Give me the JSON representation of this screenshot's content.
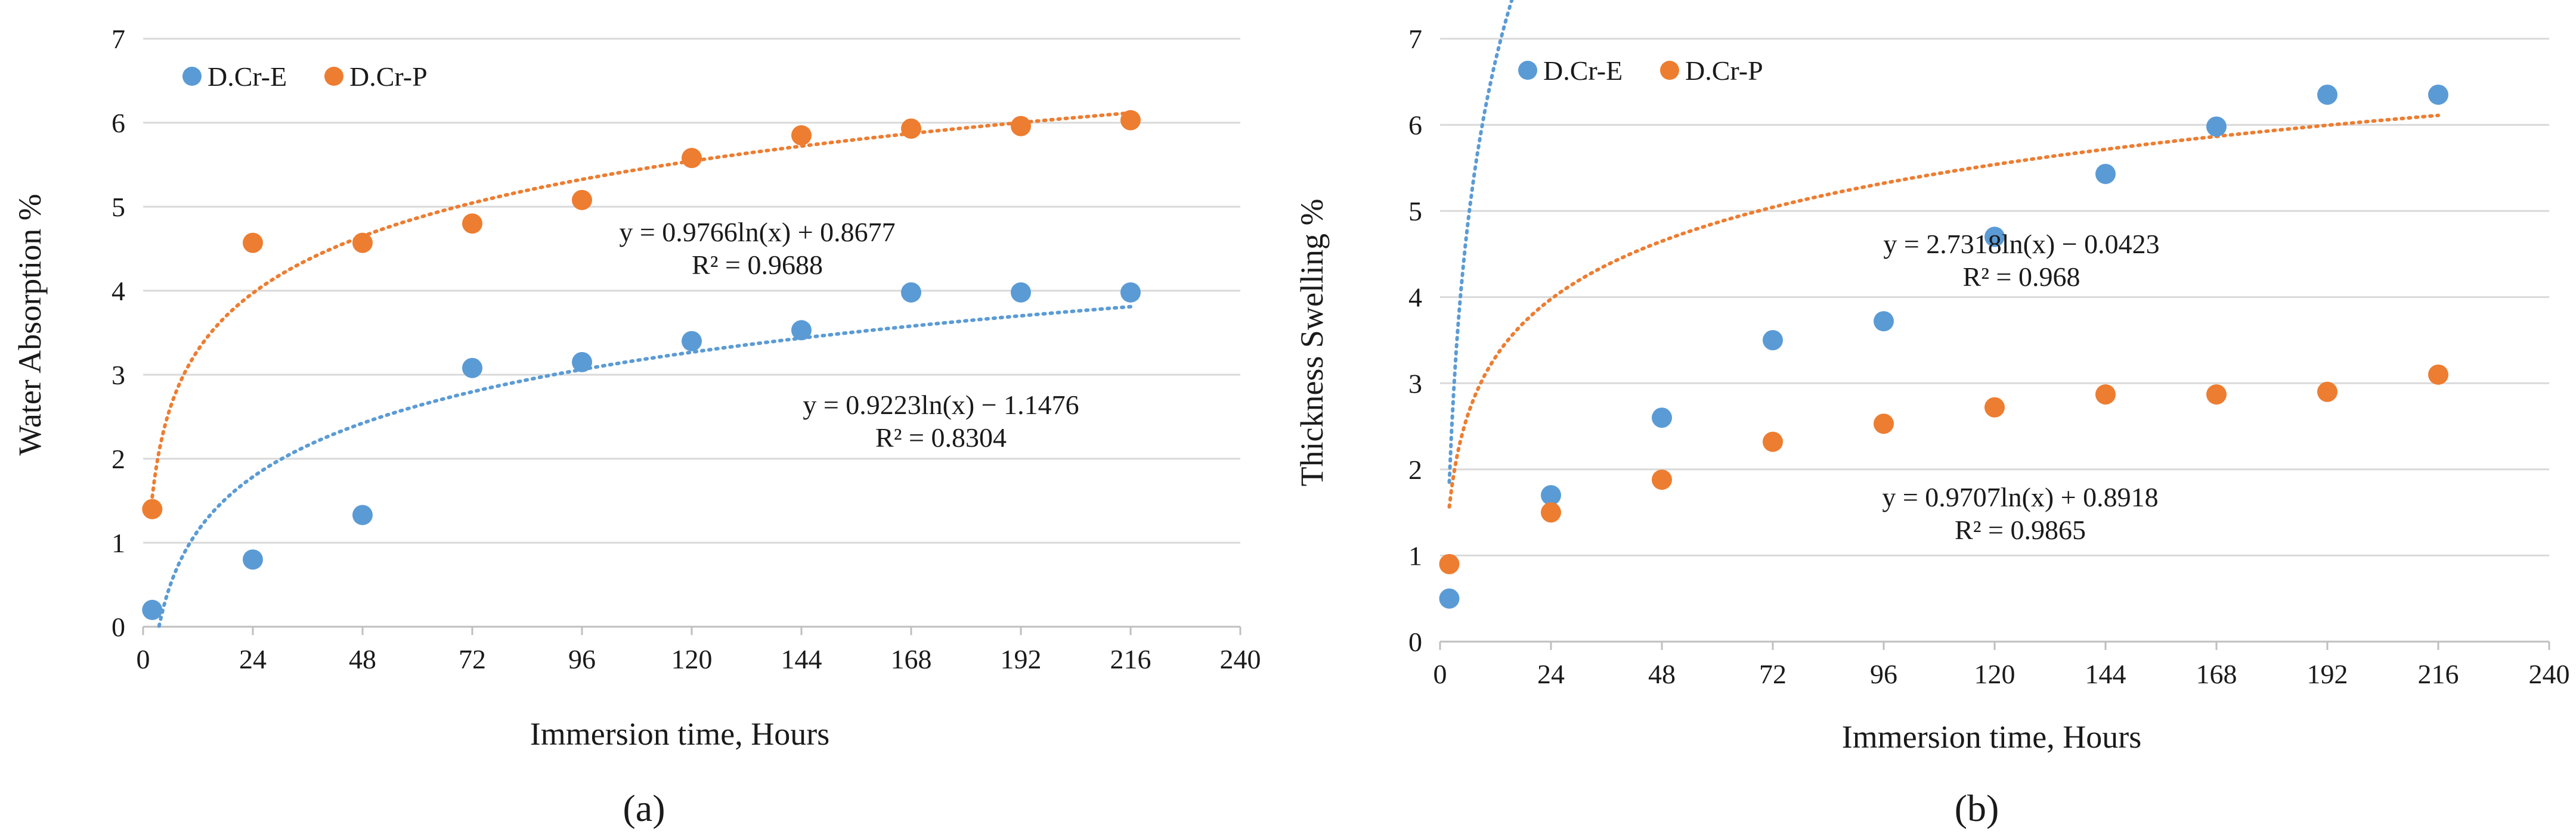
{
  "chart_data": [
    {
      "type": "scatter",
      "caption": "(a)",
      "ylabel": "Water Absorption %",
      "xlabel": "Immersion time, Hours",
      "xlim": [
        0,
        240
      ],
      "ylim": [
        0,
        7
      ],
      "xticks": [
        0,
        24,
        48,
        72,
        96,
        120,
        144,
        168,
        192,
        216,
        240
      ],
      "yticks": [
        0,
        1,
        2,
        3,
        4,
        5,
        6,
        7
      ],
      "grid": "horizontal",
      "legend_position": "top-left",
      "series": [
        {
          "name": "D.Cr-E",
          "color": "#5b9bd5",
          "x": [
            2,
            24,
            48,
            72,
            96,
            120,
            144,
            168,
            192,
            216
          ],
          "y": [
            0.2,
            0.8,
            1.33,
            3.08,
            3.15,
            3.4,
            3.53,
            3.98,
            3.98,
            3.98
          ],
          "trendline": {
            "type": "log",
            "a": 0.9223,
            "b": -1.1476,
            "x_range": [
              2,
              216
            ],
            "equation": "y = 0.9223ln(x)  − 1.1476",
            "r2": "R² = 0.8304"
          }
        },
        {
          "name": "D.Cr-P",
          "color": "#ed7d31",
          "x": [
            2,
            24,
            48,
            72,
            96,
            120,
            144,
            168,
            192,
            216
          ],
          "y": [
            1.4,
            4.57,
            4.57,
            4.8,
            5.08,
            5.58,
            5.85,
            5.93,
            5.96,
            6.03
          ],
          "trendline": {
            "type": "log",
            "a": 0.9766,
            "b": 0.8677,
            "x_range": [
              2,
              216
            ],
            "equation": "y = 0.9766ln(x)  + 0.8677",
            "r2": "R² = 0.9688"
          }
        }
      ]
    },
    {
      "type": "scatter",
      "caption": "(b)",
      "ylabel": "Thickness Swelling %",
      "xlabel": "Immersion time, Hours",
      "xlim": [
        0,
        240
      ],
      "ylim": [
        0,
        7
      ],
      "xticks": [
        0,
        24,
        48,
        72,
        96,
        120,
        144,
        168,
        192,
        216,
        240
      ],
      "yticks": [
        0,
        1,
        2,
        3,
        4,
        5,
        6,
        7
      ],
      "grid": "horizontal",
      "legend_position": "top-left",
      "series": [
        {
          "name": "D.Cr-E",
          "color": "#5b9bd5",
          "x": [
            2,
            24,
            48,
            72,
            96,
            120,
            144,
            168,
            192,
            216
          ],
          "y": [
            0.5,
            1.7,
            2.6,
            3.5,
            3.72,
            4.7,
            5.43,
            5.98,
            6.35,
            6.35
          ],
          "trendline": {
            "type": "log",
            "a": 2.7318,
            "b": -0.0423,
            "x_range": [
              2,
              216
            ],
            "equation": "y = 2.7318ln(x)  − 0.0423",
            "r2": "R² = 0.968"
          }
        },
        {
          "name": "D.Cr-P",
          "color": "#ed7d31",
          "x": [
            2,
            24,
            48,
            72,
            96,
            120,
            144,
            168,
            192,
            216
          ],
          "y": [
            0.9,
            1.5,
            1.88,
            2.32,
            2.53,
            2.72,
            2.87,
            2.87,
            2.9,
            3.1
          ],
          "trendline": {
            "type": "log",
            "a": 0.9707,
            "b": 0.8918,
            "x_range": [
              2,
              216
            ],
            "equation": "y = 0.9707ln(x)  + 0.8918",
            "r2": "R² = 0.9865"
          }
        }
      ]
    }
  ]
}
